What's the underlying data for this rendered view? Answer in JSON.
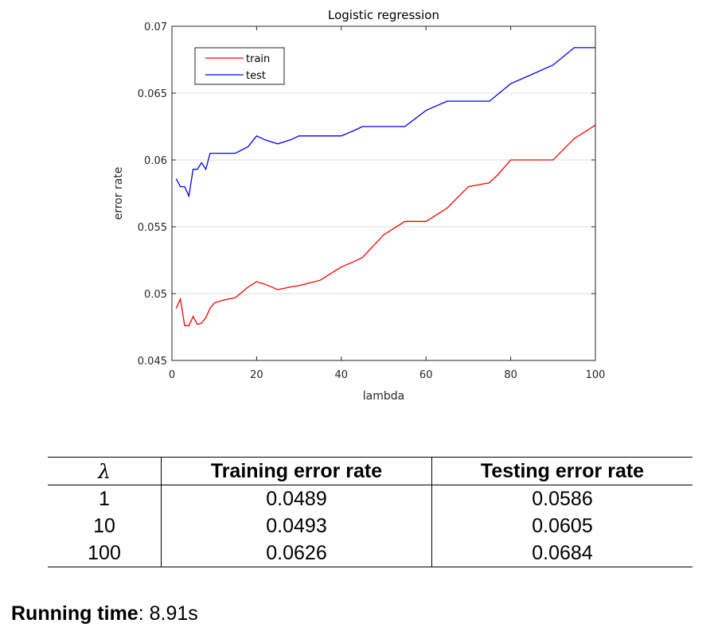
{
  "chart_data": {
    "type": "line",
    "title": "Logistic regression",
    "xlabel": "lambda",
    "ylabel": "error rate",
    "xlim": [
      0,
      100
    ],
    "ylim": [
      0.045,
      0.07
    ],
    "xticks": [
      0,
      20,
      40,
      60,
      80,
      100
    ],
    "yticks": [
      0.045,
      0.05,
      0.055,
      0.06,
      0.065,
      0.07
    ],
    "ytick_labels": [
      "0.045",
      "0.05",
      "0.055",
      "0.06",
      "0.065",
      "0.07"
    ],
    "grid": "horizontal",
    "legend_position": "top-left",
    "series": [
      {
        "name": "train",
        "color": "#ff0000",
        "x": [
          1,
          2,
          3,
          4,
          5,
          6,
          7,
          8,
          9,
          10,
          12,
          15,
          18,
          20,
          22,
          25,
          28,
          30,
          35,
          40,
          43,
          45,
          50,
          55,
          60,
          65,
          70,
          75,
          77,
          80,
          85,
          90,
          95,
          100
        ],
        "y": [
          0.0489,
          0.0496,
          0.0476,
          0.0476,
          0.0483,
          0.0477,
          0.0478,
          0.0482,
          0.0489,
          0.0493,
          0.0495,
          0.0497,
          0.0505,
          0.0509,
          0.0507,
          0.0503,
          0.0505,
          0.0506,
          0.051,
          0.052,
          0.0524,
          0.0527,
          0.0544,
          0.0554,
          0.0554,
          0.0564,
          0.058,
          0.0583,
          0.0589,
          0.06,
          0.06,
          0.06,
          0.0616,
          0.0626
        ]
      },
      {
        "name": "test",
        "color": "#0000ff",
        "x": [
          1,
          2,
          3,
          4,
          5,
          6,
          7,
          8,
          9,
          10,
          12,
          15,
          18,
          20,
          22,
          25,
          28,
          30,
          35,
          40,
          43,
          45,
          50,
          55,
          60,
          65,
          70,
          75,
          80,
          85,
          90,
          95,
          100
        ],
        "y": [
          0.0586,
          0.058,
          0.058,
          0.0573,
          0.0593,
          0.0593,
          0.0598,
          0.0593,
          0.0605,
          0.0605,
          0.0605,
          0.0605,
          0.061,
          0.0618,
          0.0615,
          0.0612,
          0.0615,
          0.0618,
          0.0618,
          0.0618,
          0.0622,
          0.0625,
          0.0625,
          0.0625,
          0.0637,
          0.0644,
          0.0644,
          0.0644,
          0.0657,
          0.0664,
          0.0671,
          0.0684,
          0.0684
        ]
      }
    ]
  },
  "table": {
    "headers": [
      "λ",
      "Training error rate",
      "Testing error rate"
    ],
    "rows": [
      [
        "1",
        "0.0489",
        "0.0586"
      ],
      [
        "10",
        "0.0493",
        "0.0605"
      ],
      [
        "100",
        "0.0626",
        "0.0684"
      ]
    ]
  },
  "running_time": {
    "label": "Running time",
    "separator": ":",
    "value": "8.91s"
  }
}
